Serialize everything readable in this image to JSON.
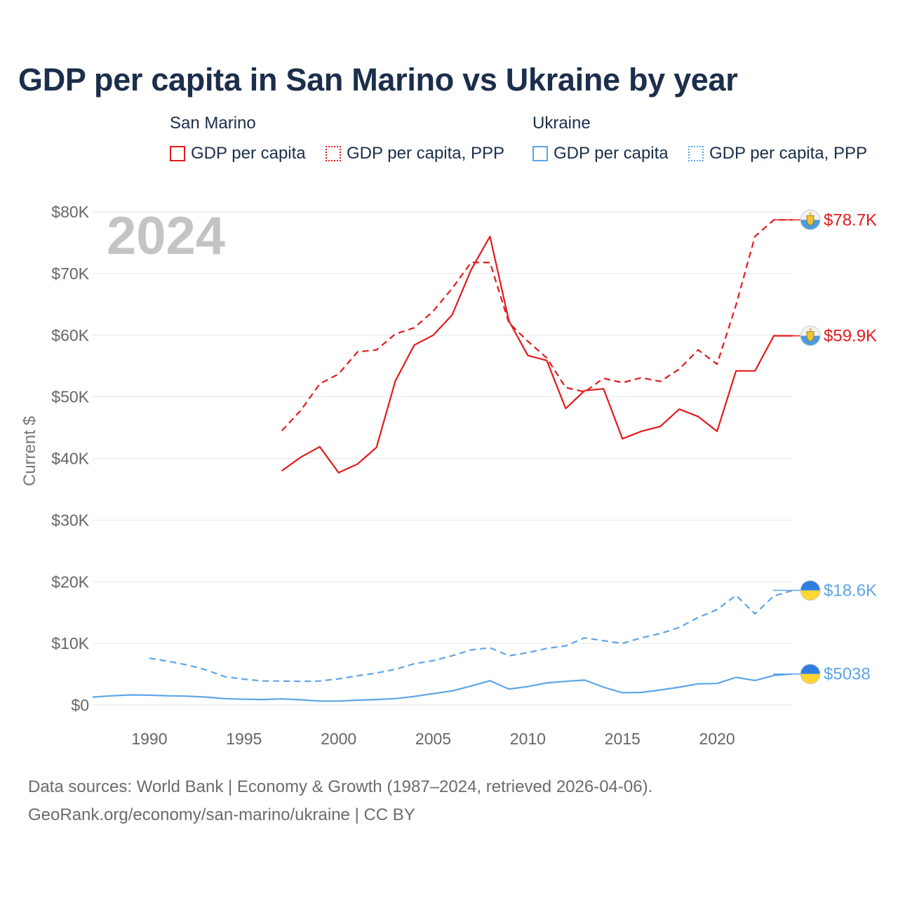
{
  "title": "GDP per capita in San Marino vs Ukraine by year",
  "legend": {
    "groups": [
      {
        "name": "San Marino",
        "items": [
          {
            "label": "GDP per capita",
            "style": "solid",
            "color": "#e41a1c"
          },
          {
            "label": "GDP per capita, PPP",
            "style": "dotted",
            "color": "#e41a1c"
          }
        ]
      },
      {
        "name": "Ukraine",
        "items": [
          {
            "label": "GDP per capita",
            "style": "solid",
            "color": "#5da5e6"
          },
          {
            "label": "GDP per capita, PPP",
            "style": "dotted",
            "color": "#5da5e6"
          }
        ]
      }
    ]
  },
  "chart_data": {
    "type": "line",
    "title": "GDP per capita in San Marino vs Ukraine by year",
    "xlabel": "",
    "ylabel": "Current $",
    "xlim": [
      1987,
      2024
    ],
    "ylim": [
      0,
      80000
    ],
    "xticks": [
      1990,
      1995,
      2000,
      2005,
      2010,
      2015,
      2020
    ],
    "yticks": [
      0,
      10000,
      20000,
      30000,
      40000,
      50000,
      60000,
      70000,
      80000
    ],
    "ytick_labels": [
      "$0",
      "$10K",
      "$20K",
      "$30K",
      "$40K",
      "$50K",
      "$60K",
      "$70K",
      "$80K"
    ],
    "year_label": "2024",
    "grid": true,
    "series": [
      {
        "name": "San Marino GDP per capita",
        "country": "San Marino",
        "color": "#e41a1c",
        "dash": "solid",
        "end_label": "$59.9K",
        "x": [
          1997,
          1998,
          1999,
          2000,
          2001,
          2002,
          2003,
          2004,
          2005,
          2006,
          2007,
          2008,
          2009,
          2010,
          2011,
          2012,
          2013,
          2014,
          2015,
          2016,
          2017,
          2018,
          2019,
          2020,
          2021,
          2022,
          2023,
          2024
        ],
        "values": [
          38000,
          40200,
          41900,
          37700,
          39100,
          41800,
          52600,
          58400,
          60000,
          63300,
          70600,
          76000,
          62300,
          56700,
          55900,
          48100,
          51000,
          51300,
          43200,
          44400,
          45200,
          48000,
          46800,
          44400,
          54200,
          54200,
          59900,
          59900
        ]
      },
      {
        "name": "San Marino GDP per capita, PPP",
        "country": "San Marino",
        "color": "#e41a1c",
        "dash": "dashed",
        "end_label": "$78.7K",
        "x": [
          1997,
          1998,
          1999,
          2000,
          2001,
          2002,
          2003,
          2004,
          2005,
          2006,
          2007,
          2008,
          2009,
          2010,
          2011,
          2012,
          2013,
          2014,
          2015,
          2016,
          2017,
          2018,
          2019,
          2020,
          2021,
          2022,
          2023,
          2024
        ],
        "values": [
          44500,
          47800,
          52100,
          53700,
          57300,
          57600,
          60200,
          61200,
          63900,
          67600,
          71800,
          71800,
          62000,
          59000,
          56300,
          51500,
          50800,
          53000,
          52300,
          53100,
          52500,
          54500,
          57600,
          55300,
          64900,
          76000,
          78700,
          78700
        ]
      },
      {
        "name": "Ukraine GDP per capita",
        "country": "Ukraine",
        "color": "#5da5e6",
        "dash": "solid",
        "end_label": "$5038",
        "x": [
          1987,
          1988,
          1989,
          1990,
          1991,
          1992,
          1993,
          1994,
          1995,
          1996,
          1997,
          1998,
          1999,
          2000,
          2001,
          2002,
          2003,
          2004,
          2005,
          2006,
          2007,
          2008,
          2009,
          2010,
          2011,
          2012,
          2013,
          2014,
          2015,
          2016,
          2017,
          2018,
          2019,
          2020,
          2021,
          2022,
          2023,
          2024
        ],
        "values": [
          1300,
          1500,
          1650,
          1600,
          1500,
          1450,
          1300,
          1050,
          950,
          900,
          1000,
          850,
          650,
          650,
          800,
          900,
          1050,
          1400,
          1850,
          2300,
          3100,
          3950,
          2600,
          3000,
          3600,
          3850,
          4050,
          2900,
          2000,
          2050,
          2450,
          2900,
          3450,
          3500,
          4500,
          4000,
          4800,
          5038
        ]
      },
      {
        "name": "Ukraine GDP per capita, PPP",
        "country": "Ukraine",
        "color": "#5da5e6",
        "dash": "dashed",
        "end_label": "$18.6K",
        "x": [
          1990,
          1991,
          1992,
          1993,
          1994,
          1995,
          1996,
          1997,
          1998,
          1999,
          2000,
          2001,
          2002,
          2003,
          2004,
          2005,
          2006,
          2007,
          2008,
          2009,
          2010,
          2011,
          2012,
          2013,
          2014,
          2015,
          2016,
          2017,
          2018,
          2019,
          2020,
          2021,
          2022,
          2023,
          2024
        ],
        "values": [
          7600,
          7100,
          6500,
          5700,
          4600,
          4200,
          3900,
          3900,
          3850,
          3900,
          4250,
          4750,
          5200,
          5800,
          6700,
          7200,
          8000,
          8950,
          9300,
          8000,
          8500,
          9200,
          9600,
          10900,
          10450,
          10000,
          10900,
          11600,
          12600,
          14200,
          15500,
          17800,
          14800,
          17700,
          18600
        ]
      }
    ]
  },
  "footer": {
    "line1": "Data sources: World Bank | Economy & Growth (1987–2024, retrieved 2026-04-06).",
    "line2": "GeoRank.org/economy/san-marino/ukraine | CC BY"
  }
}
